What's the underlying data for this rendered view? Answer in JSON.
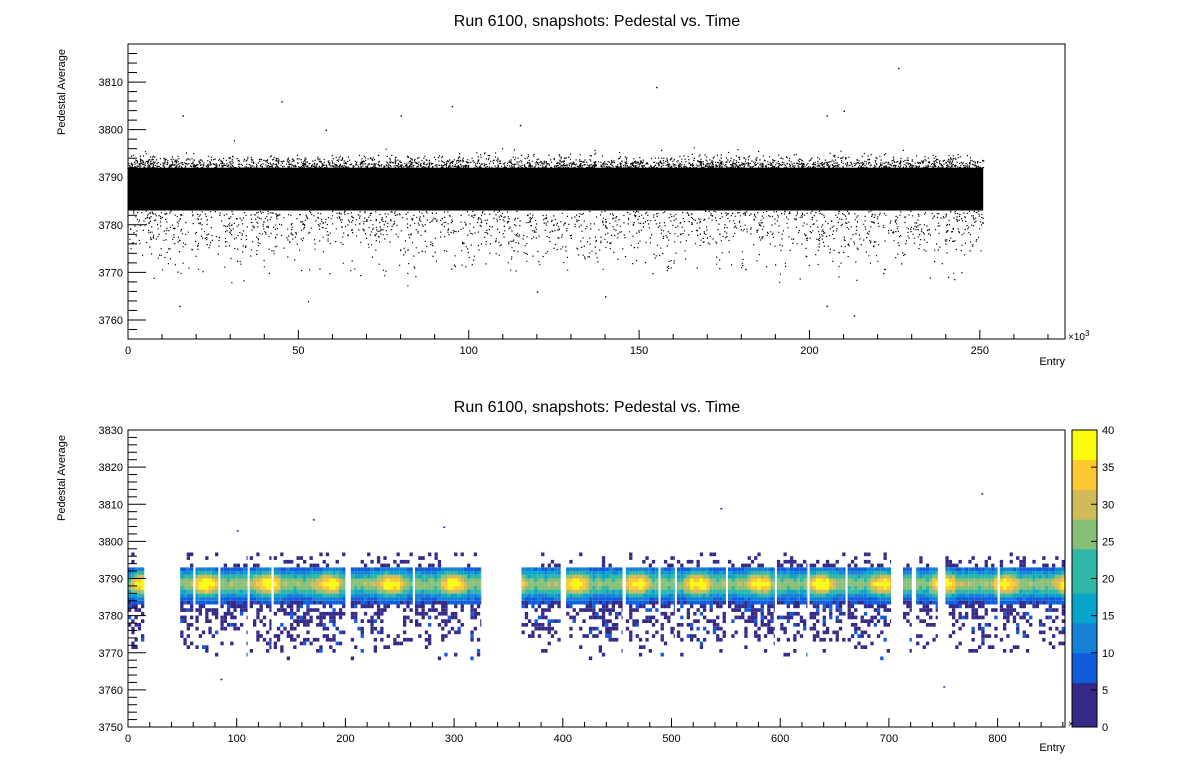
{
  "chart_data": [
    {
      "type": "scatter",
      "title": "Run 6100, snapshots: Pedestal vs. Time",
      "xlabel": "Entry",
      "ylabel": "Pedestal Average",
      "x_multiplier": "×10",
      "x_multiplier_exp": "3",
      "xlim": [
        0,
        275
      ],
      "ylim": [
        3756,
        3818
      ],
      "x_ticks": [
        0,
        50,
        100,
        150,
        200,
        250
      ],
      "y_ticks": [
        3760,
        3770,
        3780,
        3790,
        3800,
        3810
      ],
      "x_tick_labels": [
        "0",
        "50",
        "100",
        "150",
        "200",
        "250"
      ],
      "y_tick_labels": [
        "3760",
        "3770",
        "3780",
        "3790",
        "3800",
        "3810"
      ],
      "data_extent_x": [
        0,
        251
      ],
      "band": {
        "core_low": 3783,
        "core_high": 3792,
        "tail_low": 3770
      },
      "outliers": [
        {
          "x": 16,
          "y": 3803
        },
        {
          "x": 45,
          "y": 3806
        },
        {
          "x": 58,
          "y": 3800
        },
        {
          "x": 80,
          "y": 3803
        },
        {
          "x": 95,
          "y": 3805
        },
        {
          "x": 115,
          "y": 3801
        },
        {
          "x": 155,
          "y": 3809
        },
        {
          "x": 205,
          "y": 3803
        },
        {
          "x": 210,
          "y": 3804
        },
        {
          "x": 226,
          "y": 3813
        },
        {
          "x": 15,
          "y": 3763
        },
        {
          "x": 205,
          "y": 3763
        },
        {
          "x": 213,
          "y": 3761
        },
        {
          "x": 140,
          "y": 3765
        },
        {
          "x": 120,
          "y": 3766
        }
      ]
    },
    {
      "type": "heatmap",
      "title": "Run 6100, snapshots: Pedestal vs. Time",
      "xlabel": "Entry",
      "ylabel": "Pedestal Average",
      "x_multiplier": "×10",
      "x_multiplier_exp": "3",
      "xlim": [
        0,
        862
      ],
      "ylim": [
        3750,
        3830
      ],
      "x_ticks": [
        0,
        100,
        200,
        300,
        400,
        500,
        600,
        700,
        800
      ],
      "y_ticks": [
        3750,
        3760,
        3770,
        3780,
        3790,
        3800,
        3810,
        3820,
        3830
      ],
      "x_tick_labels": [
        "0",
        "100",
        "200",
        "300",
        "400",
        "500",
        "600",
        "700",
        "800"
      ],
      "y_tick_labels": [
        "3750",
        "3760",
        "3770",
        "3780",
        "3790",
        "3800",
        "3810",
        "3820",
        "3830"
      ],
      "segments": [
        [
          0,
          15
        ],
        [
          48,
          60
        ],
        [
          62,
          83
        ],
        [
          85,
          110
        ],
        [
          112,
          132
        ],
        [
          134,
          200
        ],
        [
          205,
          262
        ],
        [
          264,
          325
        ],
        [
          362,
          398
        ],
        [
          403,
          455
        ],
        [
          458,
          488
        ],
        [
          490,
          503
        ],
        [
          505,
          550
        ],
        [
          552,
          595
        ],
        [
          597,
          625
        ],
        [
          627,
          660
        ],
        [
          662,
          702
        ],
        [
          713,
          721
        ],
        [
          725,
          745
        ],
        [
          752,
          800
        ],
        [
          802,
          862
        ]
      ],
      "z_range": [
        0,
        40
      ],
      "colorbar_ticks": [
        0,
        5,
        10,
        15,
        20,
        25,
        30,
        35,
        40
      ],
      "colorbar_tick_labels": [
        "0",
        "5",
        "10",
        "15",
        "20",
        "25",
        "30",
        "35",
        "40"
      ],
      "palette": [
        "#352a87",
        "#0f5cdd",
        "#1481d6",
        "#06a4ca",
        "#2eb7a4",
        "#87bf77",
        "#d1bb59",
        "#fec832",
        "#f9fb0e"
      ],
      "outliers": [
        {
          "x": 290,
          "y": 3804
        },
        {
          "x": 545,
          "y": 3809
        },
        {
          "x": 785,
          "y": 3813
        },
        {
          "x": 170,
          "y": 3806
        },
        {
          "x": 100,
          "y": 3803
        },
        {
          "x": 750,
          "y": 3761
        },
        {
          "x": 85,
          "y": 3763
        }
      ]
    }
  ]
}
